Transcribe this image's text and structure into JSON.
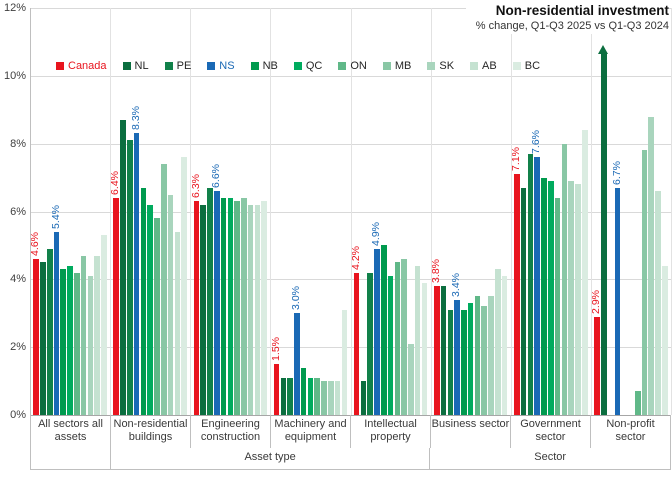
{
  "header": {
    "title": "Non-residential investment",
    "subtitle": "% change, Q1-Q3 2025 vs Q1-Q3 2024"
  },
  "chart_data": {
    "type": "bar",
    "title": "Non-residential investment",
    "subtitle": "% change, Q1-Q3 2025 vs Q1-Q3 2024",
    "y_axis": {
      "min": 0,
      "max": 12,
      "step": 2,
      "tick_labels": [
        "0%",
        "2%",
        "4%",
        "6%",
        "8%",
        "10%",
        "12%"
      ],
      "grid": true
    },
    "legend_position": "top-left-horizontal",
    "series": [
      {
        "name": "Canada",
        "color": "#e8141e",
        "label_color": "#e8141e"
      },
      {
        "name": "NL",
        "color": "#0b6e3f",
        "label_color": "#262626"
      },
      {
        "name": "PE",
        "color": "#11814a",
        "label_color": "#262626"
      },
      {
        "name": "NS",
        "color": "#1a69b5",
        "label_color": "#1a69b5"
      },
      {
        "name": "NB",
        "color": "#009a4e",
        "label_color": "#262626"
      },
      {
        "name": "QC",
        "color": "#00ab5e",
        "label_color": "#262626"
      },
      {
        "name": "ON",
        "color": "#60b888",
        "label_color": "#262626"
      },
      {
        "name": "MB",
        "color": "#89c7a5",
        "label_color": "#262626"
      },
      {
        "name": "SK",
        "color": "#a9d5bd",
        "label_color": "#262626"
      },
      {
        "name": "AB",
        "color": "#c5e2d1",
        "label_color": "#262626"
      },
      {
        "name": "BC",
        "color": "#daece1",
        "label_color": "#262626"
      }
    ],
    "categories": [
      {
        "name": "All sectors all assets",
        "values": [
          4.6,
          4.5,
          4.9,
          5.4,
          4.3,
          4.4,
          4.2,
          4.7,
          4.1,
          4.7,
          5.3
        ],
        "labels": {
          "0": "4.6%",
          "3": "5.4%"
        }
      },
      {
        "name": "Non-residential buildings",
        "values": [
          6.4,
          8.7,
          8.1,
          8.3,
          6.7,
          6.2,
          5.8,
          7.4,
          6.5,
          5.4,
          7.6
        ],
        "labels": {
          "0": "6.4%",
          "3": "8.3%"
        }
      },
      {
        "name": "Engineering construction",
        "values": [
          6.3,
          6.2,
          6.7,
          6.6,
          6.4,
          6.4,
          6.3,
          6.4,
          6.2,
          6.2,
          6.3
        ],
        "labels": {
          "0": "6.3%",
          "3": "6.6%"
        }
      },
      {
        "name": "Machinery and equipment",
        "values": [
          1.5,
          1.1,
          1.1,
          3.0,
          1.4,
          1.1,
          1.1,
          1.0,
          1.0,
          1.0,
          3.1
        ],
        "labels": {
          "0": "1.5%",
          "3": "3.0%"
        }
      },
      {
        "name": "Intellectual property",
        "values": [
          4.2,
          1.0,
          4.2,
          4.9,
          5.0,
          4.1,
          4.5,
          4.6,
          2.1,
          4.4,
          3.9
        ],
        "labels": {
          "0": "4.2%",
          "3": "4.9%"
        }
      },
      {
        "name": "Business sector",
        "values": [
          3.8,
          3.8,
          3.1,
          3.4,
          3.1,
          3.3,
          3.5,
          3.2,
          3.5,
          4.3,
          4.1
        ],
        "labels": {
          "0": "3.8%",
          "3": "3.4%"
        }
      },
      {
        "name": "Government sector",
        "values": [
          7.1,
          6.7,
          7.7,
          7.6,
          7.0,
          6.9,
          6.4,
          8.0,
          6.9,
          6.8,
          8.4
        ],
        "labels": {
          "0": "7.1%",
          "3": "7.6%"
        }
      },
      {
        "name": "Non-profit sector",
        "values": [
          2.9,
          null,
          null,
          6.7,
          null,
          null,
          0.7,
          7.8,
          8.8,
          6.6,
          4.4
        ],
        "labels": {
          "0": "2.9%",
          "3": "6.7%"
        },
        "offscale_arrow": {
          "index": 1,
          "display_top": 10.7
        }
      }
    ],
    "axis_sections": [
      {
        "label": "",
        "start": 0,
        "span": 1
      },
      {
        "label": "Asset type",
        "start": 1,
        "span": 4
      },
      {
        "label": "Sector",
        "start": 5,
        "span": 3
      }
    ]
  }
}
